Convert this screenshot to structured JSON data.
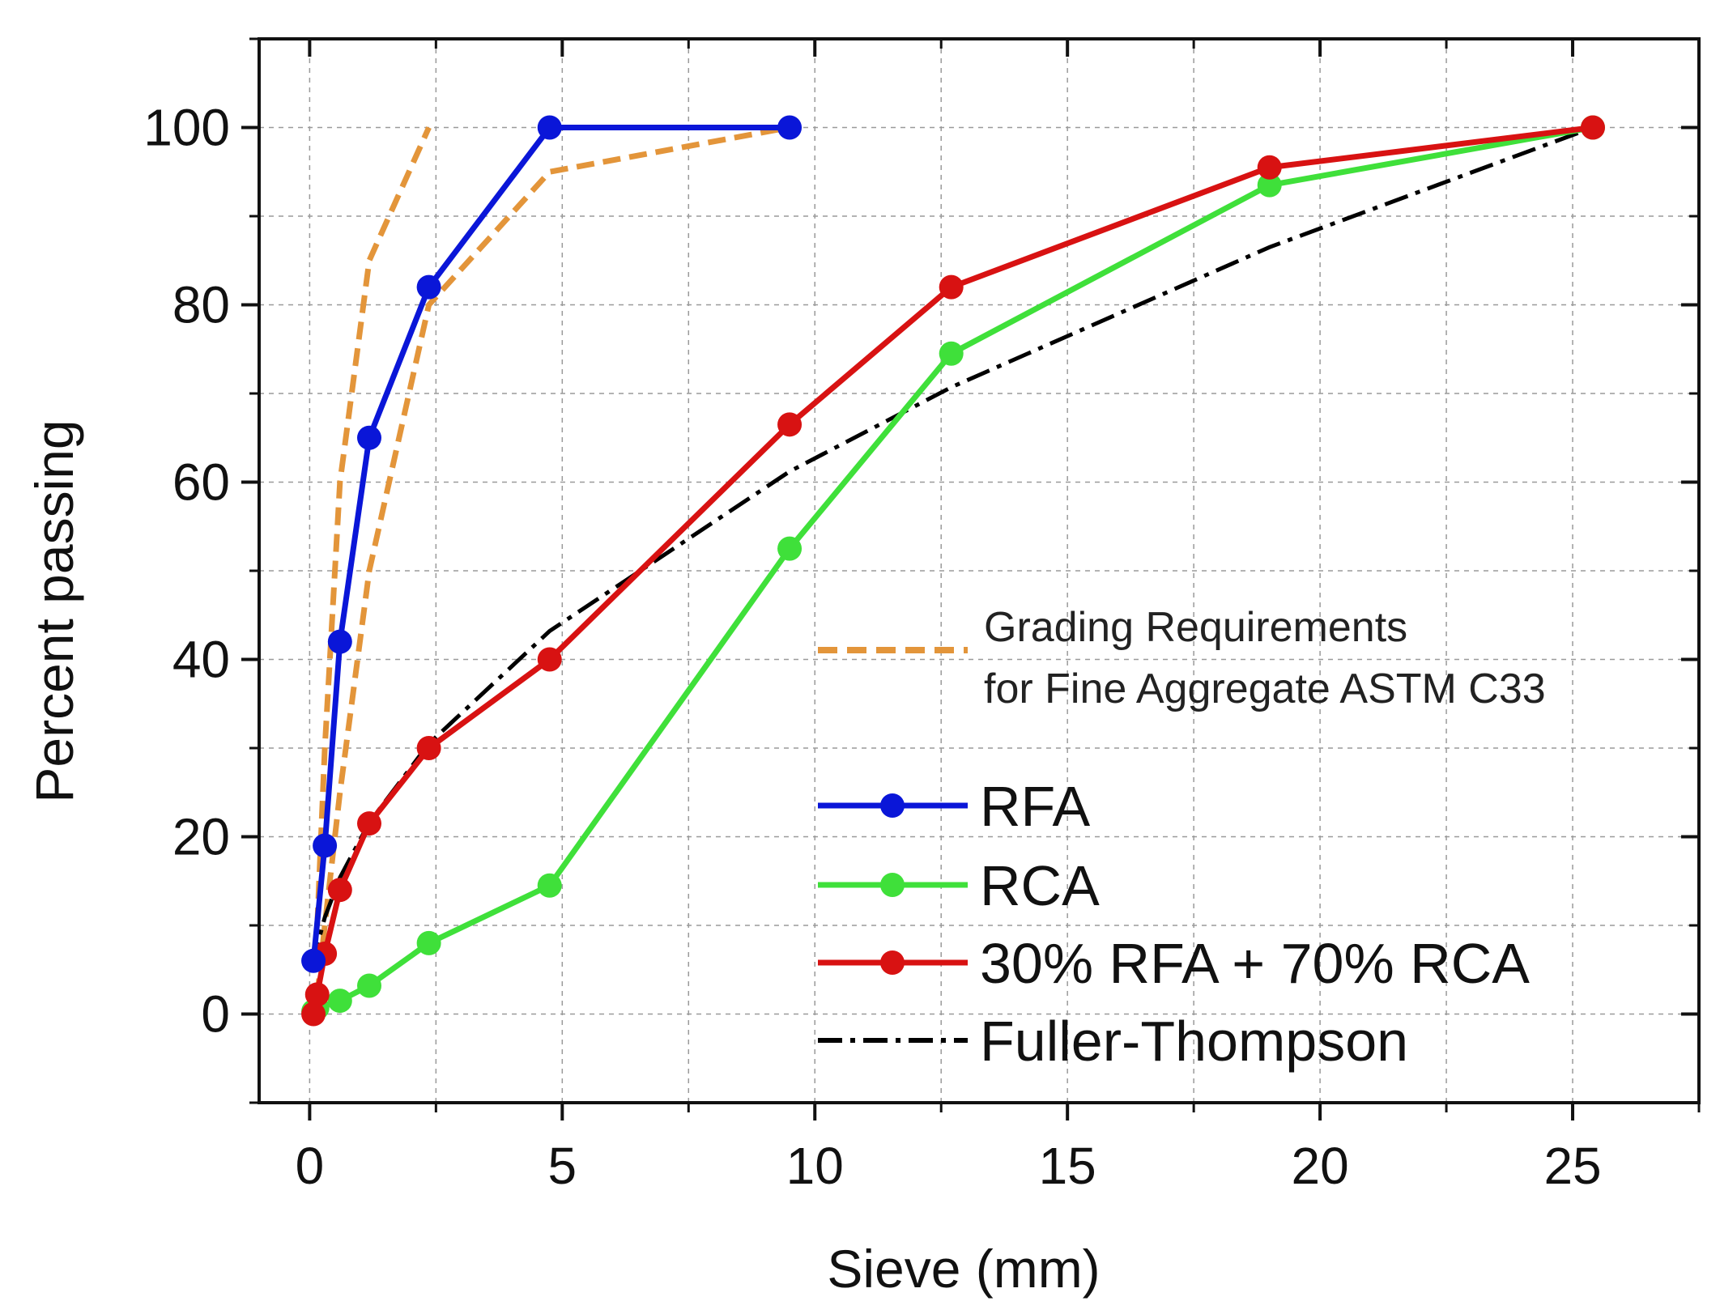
{
  "chart_data": {
    "type": "line",
    "title": "",
    "xlabel": "Sieve (mm)",
    "ylabel": "Percent passing",
    "xlim": [
      -1,
      27.5
    ],
    "ylim": [
      -10,
      110
    ],
    "xticks": [
      0,
      5,
      10,
      15,
      20,
      25
    ],
    "yticks": [
      0,
      20,
      40,
      60,
      80,
      100
    ],
    "grid": true,
    "colors": {
      "rfa": "#0a16d8",
      "rca": "#3fe03a",
      "blend": "#d81212",
      "fuller": "#000000",
      "astm": "#e3953a"
    },
    "grading_band": {
      "name_line1": "Grading Requirements",
      "name_line2": "for Fine Aggregate ASTM C33",
      "upper": {
        "x": [
          0.15,
          0.3,
          0.6,
          1.18,
          2.36
        ],
        "y": [
          10,
          30,
          60,
          85,
          100
        ]
      },
      "lower": {
        "x": [
          0.15,
          0.3,
          0.6,
          1.18,
          2.36,
          4.75,
          9.5
        ],
        "y": [
          2,
          10,
          25,
          50,
          80,
          95,
          100
        ]
      }
    },
    "series": [
      {
        "name": "RFA",
        "x": [
          0.075,
          0.3,
          0.6,
          1.18,
          2.36,
          4.75,
          9.5
        ],
        "y": [
          6,
          19,
          42,
          65,
          82,
          100,
          100
        ]
      },
      {
        "name": "RCA",
        "x": [
          0.075,
          0.15,
          0.6,
          1.18,
          2.36,
          4.75,
          9.5,
          12.7,
          19.0,
          25.4
        ],
        "y": [
          0.3,
          0.7,
          1.5,
          3.2,
          8,
          14.5,
          52.5,
          74.5,
          93.5,
          100
        ]
      },
      {
        "name": "30% RFA + 70% RCA",
        "x": [
          0.075,
          0.15,
          0.3,
          0.6,
          1.18,
          2.36,
          4.75,
          9.5,
          12.7,
          19.0,
          25.4
        ],
        "y": [
          0,
          2.2,
          6.8,
          14,
          21.5,
          30,
          40,
          66.5,
          82,
          95.5,
          100
        ]
      },
      {
        "name": "Fuller-Thompson",
        "x": [
          0.075,
          0.15,
          0.3,
          0.6,
          1.18,
          2.36,
          4.75,
          9.5,
          12.7,
          19.0,
          25.4
        ],
        "y": [
          5.4,
          7.7,
          10.9,
          15.4,
          21.6,
          30.5,
          43.2,
          61.2,
          70.7,
          86.5,
          100
        ]
      }
    ]
  }
}
